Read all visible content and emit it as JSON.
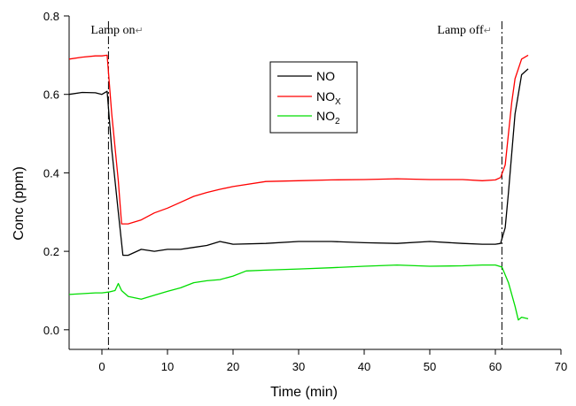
{
  "chart_data": {
    "type": "line",
    "xlabel": "Time (min)",
    "ylabel": "Conc (ppm)",
    "xlim": [
      -5,
      70
    ],
    "ylim": [
      -0.05,
      0.8
    ],
    "x_ticks": [
      0,
      10,
      20,
      30,
      40,
      50,
      60,
      70
    ],
    "y_ticks": [
      0.0,
      0.2,
      0.4,
      0.6,
      0.8
    ],
    "x_tick_labels": [
      "0",
      "10",
      "20",
      "30",
      "40",
      "50",
      "60",
      "70"
    ],
    "y_tick_labels": [
      "0.0",
      "0.2",
      "0.4",
      "0.6",
      "0.8"
    ],
    "grid": false,
    "legend_position": "top-center",
    "annotations": [
      {
        "x": 1,
        "label": "Lamp on",
        "mark": "↵"
      },
      {
        "x": 61,
        "label": "Lamp off",
        "mark": "↵"
      }
    ],
    "legend": [
      {
        "text": "NO",
        "sub": ""
      },
      {
        "text": "NO",
        "sub": "X"
      },
      {
        "text": "NO",
        "sub": "2"
      }
    ],
    "series": [
      {
        "color": "#000000",
        "x": [
          -5,
          -3,
          -1,
          0,
          0.8,
          1.5,
          2.5,
          3.2,
          4,
          6,
          8,
          10,
          12,
          14,
          16,
          18,
          20,
          25,
          30,
          35,
          40,
          45,
          50,
          55,
          58,
          60,
          60.8,
          61.5,
          62,
          62.5,
          63,
          64,
          65
        ],
        "values": [
          0.6,
          0.605,
          0.604,
          0.6,
          0.608,
          0.46,
          0.3,
          0.19,
          0.19,
          0.205,
          0.2,
          0.205,
          0.205,
          0.21,
          0.215,
          0.225,
          0.218,
          0.22,
          0.225,
          0.225,
          0.222,
          0.22,
          0.225,
          0.22,
          0.218,
          0.218,
          0.22,
          0.26,
          0.35,
          0.45,
          0.55,
          0.65,
          0.665
        ]
      },
      {
        "color": "#ff0000",
        "x": [
          -5,
          -3,
          -1,
          0,
          0.8,
          1.5,
          2.5,
          3,
          4,
          6,
          8,
          10,
          12,
          14,
          16,
          18,
          20,
          25,
          30,
          35,
          40,
          45,
          50,
          55,
          58,
          60,
          60.8,
          61.5,
          62,
          62.5,
          63,
          64,
          65
        ],
        "values": [
          0.69,
          0.695,
          0.698,
          0.698,
          0.7,
          0.55,
          0.38,
          0.27,
          0.27,
          0.28,
          0.298,
          0.31,
          0.325,
          0.34,
          0.35,
          0.358,
          0.365,
          0.378,
          0.38,
          0.382,
          0.383,
          0.385,
          0.383,
          0.383,
          0.38,
          0.382,
          0.388,
          0.42,
          0.5,
          0.58,
          0.64,
          0.69,
          0.7
        ]
      },
      {
        "color": "#00dd00",
        "x": [
          -5,
          -3,
          -1,
          0,
          1,
          2,
          2.5,
          3,
          4,
          6,
          8,
          10,
          12,
          14,
          16,
          18,
          20,
          22,
          25,
          30,
          35,
          40,
          45,
          50,
          55,
          58,
          60,
          61,
          62,
          63,
          63.5,
          64,
          65
        ],
        "values": [
          0.09,
          0.092,
          0.094,
          0.094,
          0.096,
          0.1,
          0.118,
          0.1,
          0.085,
          0.078,
          0.088,
          0.098,
          0.107,
          0.12,
          0.125,
          0.128,
          0.137,
          0.15,
          0.152,
          0.155,
          0.158,
          0.162,
          0.165,
          0.162,
          0.163,
          0.165,
          0.165,
          0.16,
          0.12,
          0.06,
          0.025,
          0.032,
          0.028
        ]
      }
    ]
  }
}
